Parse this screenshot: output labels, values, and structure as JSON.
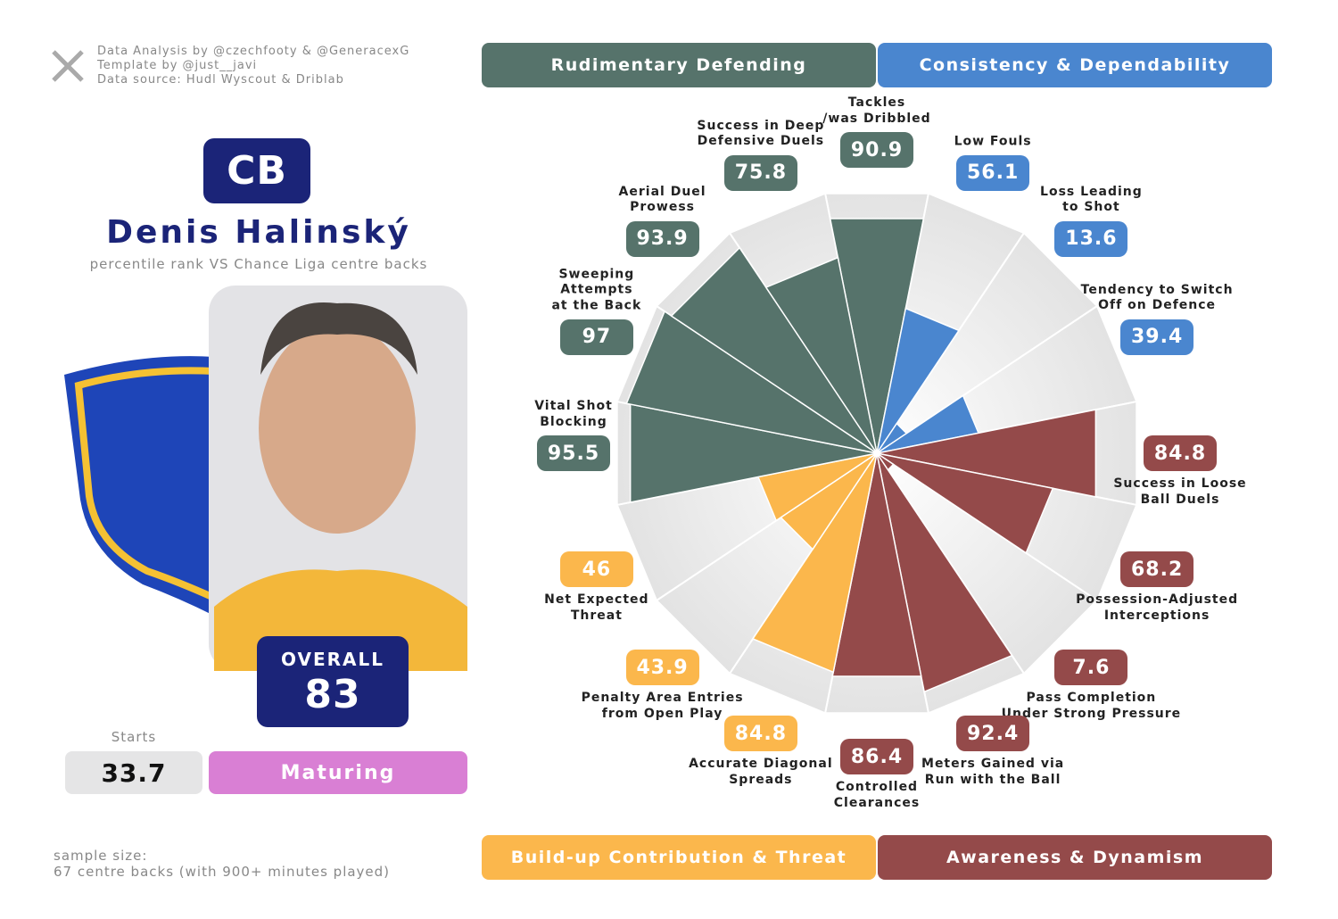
{
  "credits": [
    "Data Analysis by @czechfooty & @GeneracexG",
    "Template by @just__javi",
    "Data source: Hudl Wyscout & Driblab"
  ],
  "player": {
    "position": "CB",
    "name": "Denis Halinský",
    "subtitle": "percentile rank VS Chance Liga centre backs",
    "overall_label": "OVERALL",
    "overall": 83,
    "starts_label": "Starts",
    "starts": 33.7,
    "stage": "Maturing"
  },
  "sample": [
    "sample size:",
    "67 centre backs (with 900+ minutes played)"
  ],
  "chart_data": {
    "type": "pizza",
    "categories": [
      "Tackles\n/was Dribbled",
      "Low Fouls",
      "Loss Leading\nto Shot",
      "Tendency to Switch\nOff on Defence",
      "Success in Loose\nBall Duels",
      "Possession-Adjusted\nInterceptions",
      "Pass Completion\nUnder Strong Pressure",
      "Meters Gained via\nRun with the Ball",
      "Controlled\nClearances",
      "Accurate Diagonal\nSpreads",
      "Penalty Area Entries\nfrom Open Play",
      "Net Expected\nThreat",
      "Vital Shot\nBlocking",
      "Sweeping\nAttempts\nat the Back",
      "Aerial Duel\nProwess",
      "Success in Deep\nDefensive Duels"
    ],
    "values": [
      90.9,
      56.1,
      13.6,
      39.4,
      84.8,
      68.2,
      7.6,
      92.4,
      86.4,
      84.8,
      43.9,
      46,
      95.5,
      97,
      93.9,
      75.8
    ],
    "colors": [
      "#56736b",
      "#4a86cf",
      "#4a86cf",
      "#4a86cf",
      "#944a4a",
      "#944a4a",
      "#944a4a",
      "#944a4a",
      "#944a4a",
      "#fbb74c",
      "#fbb74c",
      "#fbb74c",
      "#56736b",
      "#56736b",
      "#56736b",
      "#56736b"
    ],
    "groups": [
      {
        "name": "Rudimentary Defending",
        "color": "#56736b"
      },
      {
        "name": "Consistency & Dependability",
        "color": "#4a86cf"
      },
      {
        "name": "Build-up Contribution & Threat",
        "color": "#fbb74c"
      },
      {
        "name": "Awareness & Dynamism",
        "color": "#944a4a"
      }
    ],
    "rlim": [
      0,
      100
    ]
  }
}
